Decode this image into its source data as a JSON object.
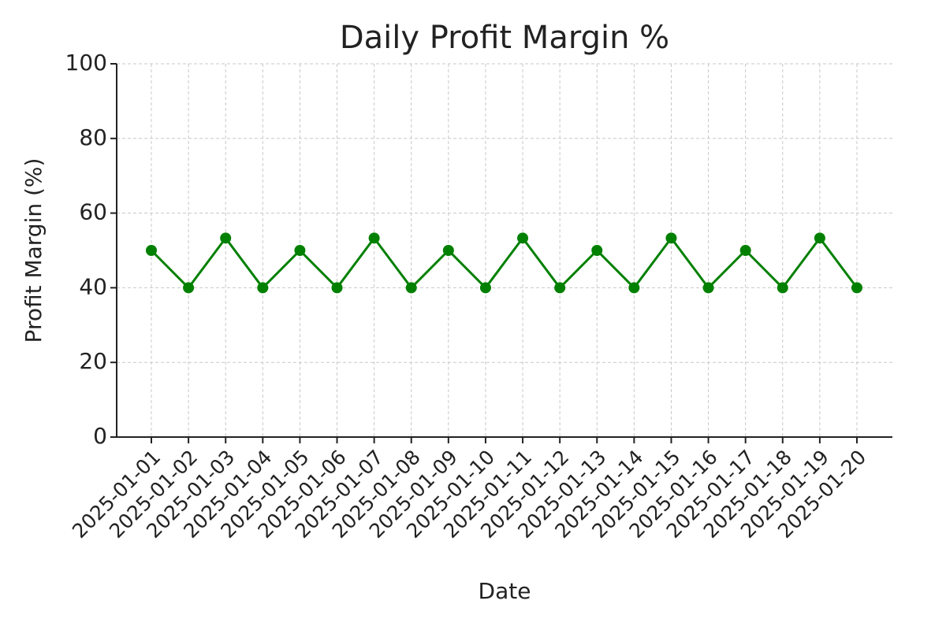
{
  "chart_data": {
    "type": "line",
    "title": "Daily Profit Margin %",
    "x_label": "Date",
    "y_label": "Profit Margin (%)",
    "categories": [
      "2025-01-01",
      "2025-01-02",
      "2025-01-03",
      "2025-01-04",
      "2025-01-05",
      "2025-01-06",
      "2025-01-07",
      "2025-01-08",
      "2025-01-09",
      "2025-01-10",
      "2025-01-11",
      "2025-01-12",
      "2025-01-13",
      "2025-01-14",
      "2025-01-15",
      "2025-01-16",
      "2025-01-17",
      "2025-01-18",
      "2025-01-19",
      "2025-01-20"
    ],
    "values": [
      50,
      40,
      53.3,
      40,
      50,
      40,
      53.3,
      40,
      50,
      40,
      53.3,
      40,
      50,
      40,
      53.3,
      40,
      50,
      40,
      53.3,
      40
    ],
    "color": "#008000",
    "ylim": [
      0,
      100
    ],
    "yticks": [
      0,
      20,
      40,
      60,
      80,
      100
    ],
    "grid": true
  }
}
